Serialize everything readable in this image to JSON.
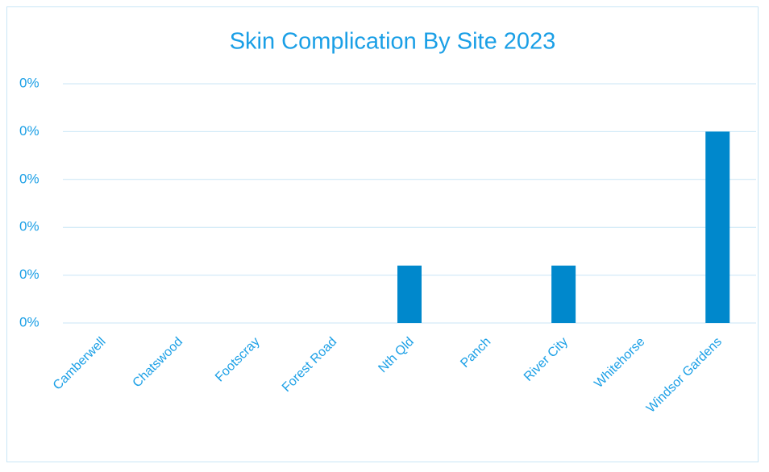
{
  "chart_data": {
    "type": "bar",
    "title": "Skin Complication By Site 2023",
    "categories": [
      "Camberwell",
      "Chatswood",
      "Footscray",
      "Forest Road",
      "Nth Qld",
      "Panch",
      "River City",
      "Whitehorse",
      "Windsor Gardens"
    ],
    "values": [
      0,
      0,
      0,
      0,
      0.06,
      0,
      0.06,
      0,
      0.2
    ],
    "color": "#0088cc",
    "ylim": [
      0,
      0.25
    ],
    "yticks": [
      {
        "value": 0,
        "label": "0%"
      },
      {
        "value": 0.05,
        "label": "0%"
      },
      {
        "value": 0.1,
        "label": "0%"
      },
      {
        "value": 0.15,
        "label": "0%"
      },
      {
        "value": 0.2,
        "label": "0%"
      },
      {
        "value": 0.25,
        "label": "0%"
      }
    ],
    "grid": true
  }
}
